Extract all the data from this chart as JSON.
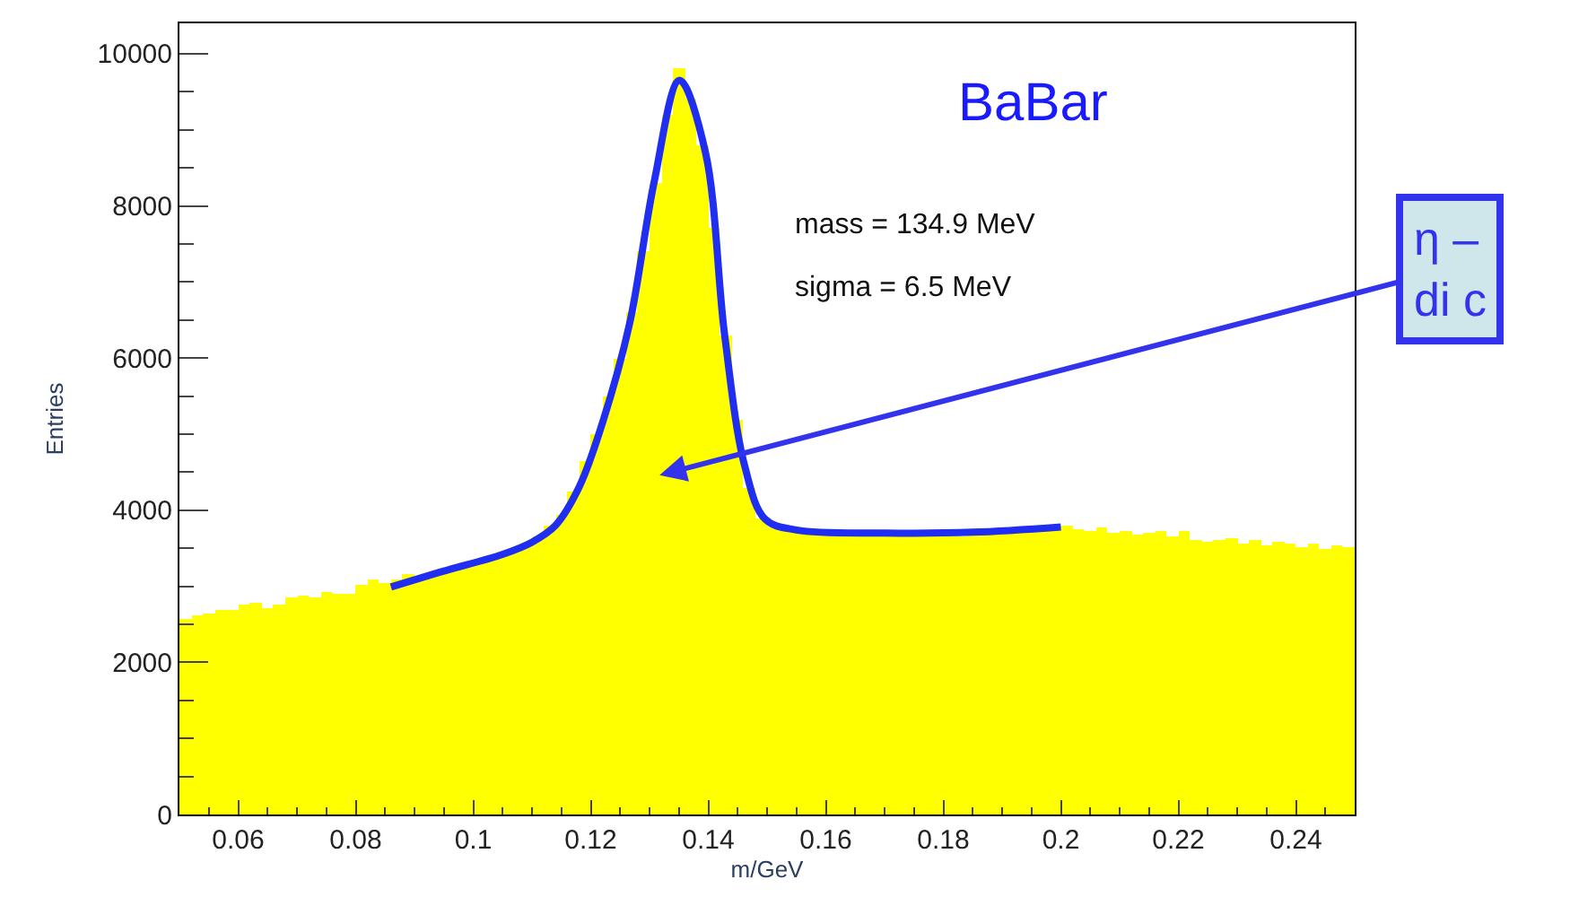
{
  "chart_data": {
    "type": "histogram",
    "xlabel": "m/GeV",
    "ylabel": "Entries",
    "xlim": [
      0.05,
      0.25
    ],
    "xticks": [
      0.06,
      0.08,
      0.1,
      0.12,
      0.14,
      0.16,
      0.18,
      0.2,
      0.22,
      0.24
    ],
    "ylim": [
      0,
      10400
    ],
    "yticks": [
      0,
      2000,
      4000,
      6000,
      8000,
      10000
    ],
    "bins": [
      0.05,
      0.052,
      0.054,
      0.056,
      0.058,
      0.06,
      0.062,
      0.064,
      0.066,
      0.068,
      0.07,
      0.072,
      0.074,
      0.076,
      0.078,
      0.08,
      0.082,
      0.084,
      0.086,
      0.088,
      0.09,
      0.092,
      0.094,
      0.096,
      0.098,
      0.1,
      0.102,
      0.104,
      0.106,
      0.108,
      0.11,
      0.112,
      0.114,
      0.116,
      0.118,
      0.12,
      0.122,
      0.124,
      0.126,
      0.128,
      0.13,
      0.132,
      0.134,
      0.136,
      0.138,
      0.14,
      0.142,
      0.144,
      0.146,
      0.148,
      0.15,
      0.152,
      0.154,
      0.156,
      0.158,
      0.16,
      0.162,
      0.164,
      0.166,
      0.168,
      0.17,
      0.172,
      0.174,
      0.176,
      0.178,
      0.18,
      0.182,
      0.184,
      0.186,
      0.188,
      0.19,
      0.192,
      0.194,
      0.196,
      0.198,
      0.2,
      0.202,
      0.204,
      0.206,
      0.208,
      0.21,
      0.212,
      0.214,
      0.216,
      0.218,
      0.22,
      0.222,
      0.224,
      0.226,
      0.228,
      0.23,
      0.232,
      0.234,
      0.236,
      0.238,
      0.24,
      0.242,
      0.244,
      0.246,
      0.248,
      0.25
    ],
    "values": [
      2560,
      2620,
      2650,
      2680,
      2700,
      2750,
      2780,
      2720,
      2760,
      2850,
      2880,
      2850,
      2920,
      2900,
      2900,
      3020,
      3080,
      3050,
      3100,
      3150,
      3120,
      3180,
      3200,
      3250,
      3280,
      3300,
      3350,
      3400,
      3470,
      3550,
      3650,
      3800,
      3950,
      4250,
      4650,
      5000,
      5500,
      6000,
      6600,
      7400,
      8300,
      9200,
      9800,
      9400,
      8800,
      7700,
      6300,
      5200,
      4300,
      3900,
      3780,
      3750,
      3720,
      3700,
      3680,
      3700,
      3690,
      3660,
      3700,
      3680,
      3650,
      3680,
      3700,
      3660,
      3680,
      3700,
      3650,
      3720,
      3700,
      3680,
      3720,
      3750,
      3730,
      3760,
      3780,
      3800,
      3760,
      3720,
      3780,
      3700,
      3720,
      3690,
      3700,
      3720,
      3660,
      3720,
      3600,
      3580,
      3620,
      3640,
      3560,
      3600,
      3540,
      3580,
      3560,
      3520,
      3560,
      3500,
      3540,
      3520
    ],
    "color": "#ffff00",
    "series": [
      {
        "type": "line",
        "color": "#1f2ef0",
        "x": [
          0.086,
          0.095,
          0.105,
          0.11,
          0.114,
          0.118,
          0.122,
          0.1266,
          0.1308,
          0.1351,
          0.1395,
          0.1428,
          0.1462,
          0.1497,
          0.155,
          0.17,
          0.185,
          0.2
        ],
        "values": [
          2990,
          3200,
          3420,
          3580,
          3800,
          4300,
          5150,
          6450,
          8320,
          9650,
          8710,
          6290,
          4580,
          3880,
          3740,
          3700,
          3710,
          3780
        ]
      }
    ],
    "annotations": [
      "BaBar",
      "mass = 134.9 MeV",
      "sigma = 6.5 MeV",
      {
        "text": "η –\ndi c",
        "x": 0.1317,
        "y": 4460
      }
    ]
  }
}
